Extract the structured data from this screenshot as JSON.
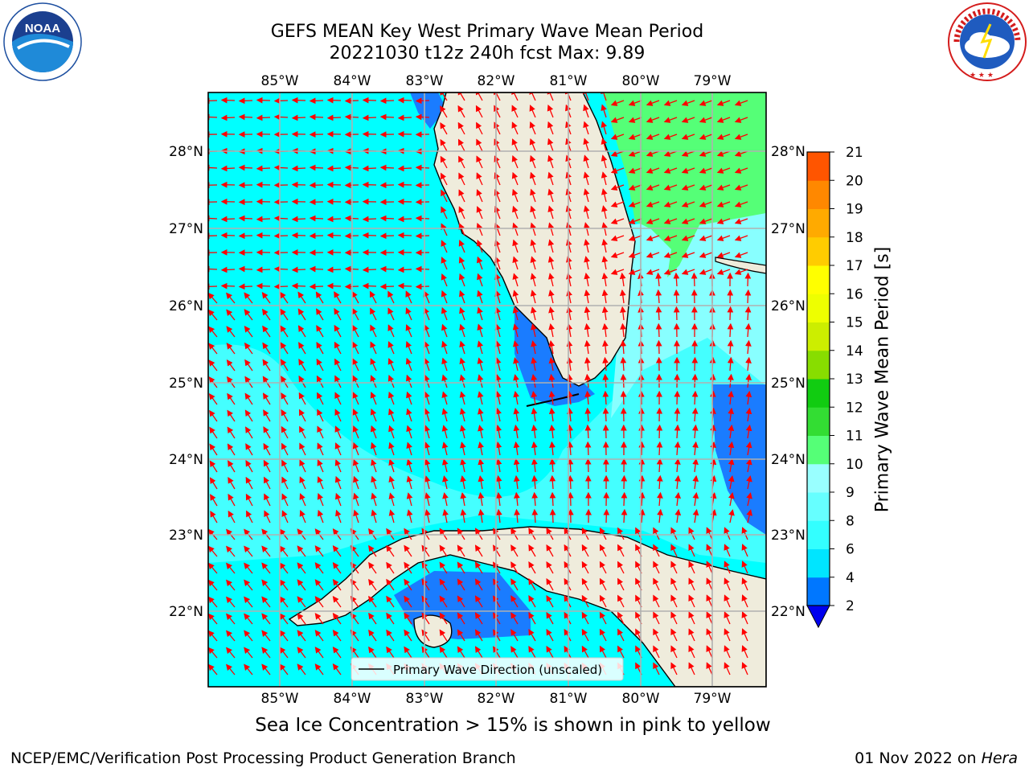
{
  "title_line1": "GEFS MEAN Key West Primary Wave Mean Period",
  "title_line2": "20221030 t12z 240h fcst   Max: 9.89",
  "lon_ticks": [
    "85°W",
    "84°W",
    "83°W",
    "82°W",
    "81°W",
    "80°W",
    "79°W"
  ],
  "lat_ticks": [
    "28°N",
    "27°N",
    "26°N",
    "25°N",
    "24°N",
    "23°N",
    "22°N"
  ],
  "legend_label": "Primary Wave Direction (unscaled)",
  "colorbar": {
    "label": "Primary Wave Mean Period [s]",
    "ticks": [
      "2",
      "4",
      "6",
      "8",
      "9",
      "10",
      "11",
      "12",
      "13",
      "14",
      "15",
      "16",
      "17",
      "18",
      "19",
      "20",
      "21"
    ],
    "colors": [
      "#0077ff",
      "#00e5ff",
      "#33ffff",
      "#66ffff",
      "#99ffff",
      "#55ff77",
      "#33dd33",
      "#11cc11",
      "#88dd00",
      "#ccee00",
      "#eeff00",
      "#ffff00",
      "#ffcc00",
      "#ffaa00",
      "#ff8800",
      "#ff5500",
      "#ff2200",
      "#ff0000"
    ],
    "extend_color": "#0000ee"
  },
  "sea_ice_note": "Sea Ice Concentration > 15% is shown in pink to yellow",
  "footer_left": "NCEP/EMC/Verification Post Processing Product Generation Branch",
  "footer_right_prefix": "01 Nov 2022 on ",
  "footer_right_machine": "Hera",
  "logo_left": "NOAA",
  "logo_right_text": "NATIONAL WEATHER SERVICE",
  "arrow_color": "#ff0000",
  "land_color": "#efecdc"
}
